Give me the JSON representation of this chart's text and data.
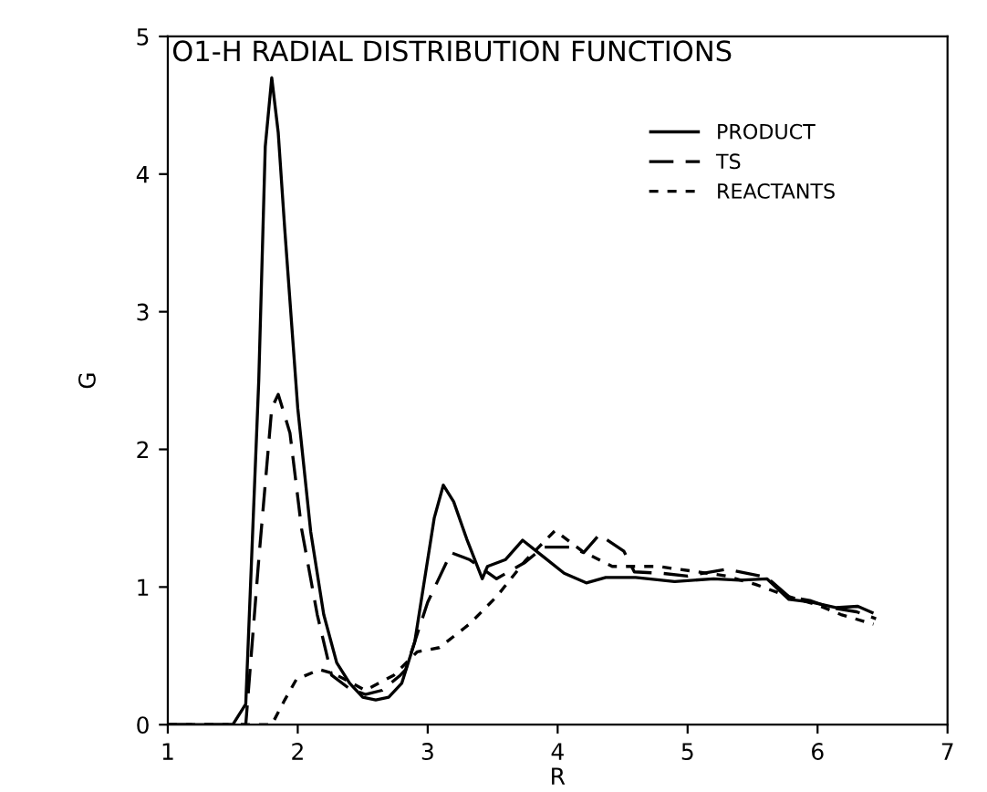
{
  "chart_data": {
    "type": "line",
    "title": "O1-H RADIAL DISTRIBUTION FUNCTIONS",
    "xlabel": "R",
    "ylabel": "G",
    "xlim": [
      1,
      7
    ],
    "ylim": [
      0,
      5
    ],
    "xticks": [
      1,
      2,
      3,
      4,
      5,
      6,
      7
    ],
    "yticks": [
      0,
      1,
      2,
      3,
      4,
      5
    ],
    "grid": false,
    "legend": "top right",
    "marker": "none",
    "series": [
      {
        "name": "PRODUCT",
        "color": "#000000",
        "line_style": "solid",
        "x": [
          1.0,
          1.5,
          1.6,
          1.7,
          1.75,
          1.8,
          1.85,
          1.9,
          2.0,
          2.1,
          2.2,
          2.3,
          2.4,
          2.5,
          2.6,
          2.7,
          2.8,
          2.9,
          3.0,
          3.05,
          3.12,
          3.2,
          3.3,
          3.42,
          3.46,
          3.6,
          3.73,
          3.89,
          4.05,
          4.22,
          4.37,
          4.6,
          4.9,
          5.2,
          5.4,
          5.61,
          5.78,
          5.95,
          6.14,
          6.31,
          6.43
        ],
        "values": [
          0,
          0,
          0.15,
          2.5,
          4.2,
          4.7,
          4.3,
          3.6,
          2.3,
          1.4,
          0.8,
          0.45,
          0.3,
          0.2,
          0.18,
          0.2,
          0.3,
          0.6,
          1.2,
          1.5,
          1.74,
          1.62,
          1.35,
          1.06,
          1.15,
          1.2,
          1.34,
          1.22,
          1.1,
          1.03,
          1.07,
          1.07,
          1.04,
          1.06,
          1.05,
          1.06,
          0.91,
          0.89,
          0.85,
          0.86,
          0.81
        ]
      },
      {
        "name": "TS",
        "color": "#000000",
        "line_style": "dashed",
        "x": [
          1.0,
          1.6,
          1.7,
          1.8,
          1.85,
          1.94,
          2.03,
          2.15,
          2.26,
          2.4,
          2.52,
          2.65,
          2.79,
          2.83,
          3.0,
          3.18,
          3.32,
          3.53,
          3.75,
          3.89,
          4.09,
          4.2,
          4.32,
          4.51,
          4.59,
          4.8,
          5.0,
          5.3,
          5.61,
          5.78,
          5.95,
          6.1,
          6.3,
          6.45
        ],
        "values": [
          0,
          0,
          1.2,
          2.3,
          2.4,
          2.12,
          1.42,
          0.8,
          0.36,
          0.26,
          0.22,
          0.25,
          0.36,
          0.4,
          0.89,
          1.25,
          1.2,
          1.06,
          1.18,
          1.29,
          1.29,
          1.25,
          1.38,
          1.26,
          1.11,
          1.1,
          1.08,
          1.13,
          1.07,
          0.93,
          0.9,
          0.85,
          0.82,
          0.77
        ]
      },
      {
        "name": "REACTANTS",
        "color": "#000000",
        "line_style": "dotted",
        "x": [
          1.0,
          1.8,
          1.9,
          1.99,
          2.17,
          2.28,
          2.52,
          2.74,
          2.92,
          3.09,
          3.32,
          3.53,
          3.75,
          3.98,
          4.19,
          4.42,
          4.77,
          5.08,
          5.3,
          5.52,
          5.78,
          6.0,
          6.18,
          6.43
        ],
        "values": [
          0,
          0,
          0.18,
          0.33,
          0.4,
          0.37,
          0.25,
          0.36,
          0.53,
          0.56,
          0.73,
          0.93,
          1.19,
          1.41,
          1.26,
          1.15,
          1.15,
          1.11,
          1.08,
          1.02,
          0.93,
          0.87,
          0.8,
          0.73
        ]
      }
    ]
  }
}
